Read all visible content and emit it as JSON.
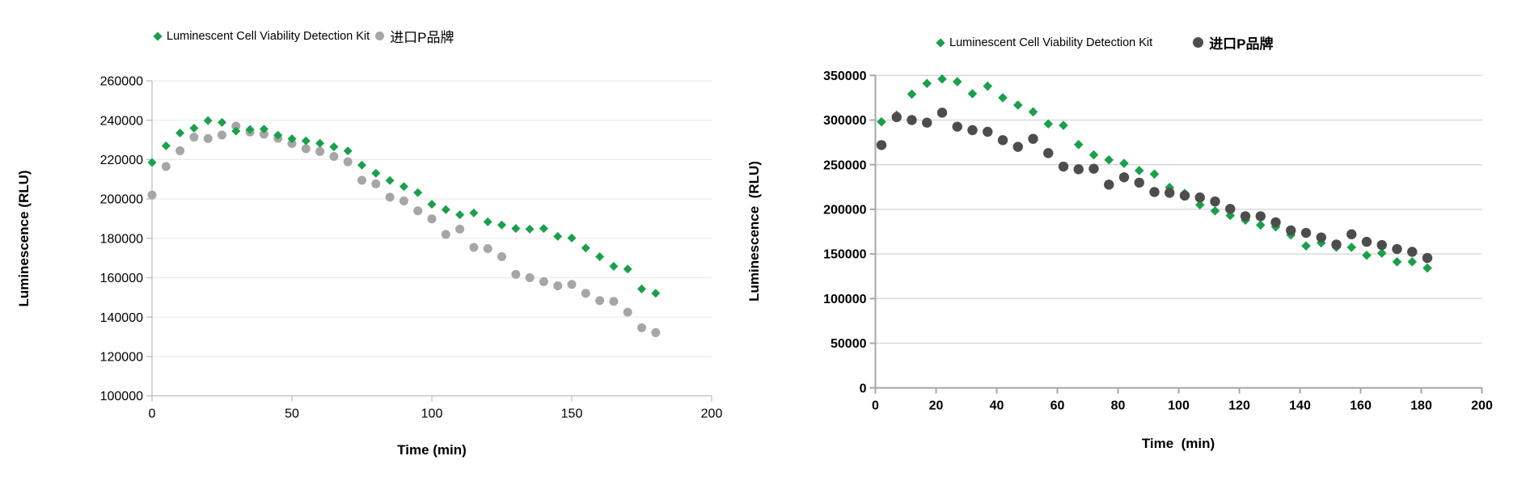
{
  "chart_data": [
    {
      "type": "scatter",
      "title": "",
      "xlabel": "Time (min)",
      "ylabel": "Luminescence (RLU)",
      "xlim": [
        0,
        200
      ],
      "ylim": [
        100000,
        260000
      ],
      "x_ticks": [
        0,
        50,
        100,
        150,
        200
      ],
      "y_ticks": [
        100000,
        120000,
        140000,
        160000,
        180000,
        200000,
        220000,
        240000,
        260000
      ],
      "grid": "horizontal",
      "legend_position": "top",
      "x": [
        0,
        5,
        10,
        15,
        20,
        25,
        30,
        35,
        40,
        45,
        50,
        55,
        60,
        65,
        70,
        75,
        80,
        85,
        90,
        95,
        100,
        105,
        110,
        115,
        120,
        125,
        130,
        135,
        140,
        145,
        150,
        155,
        160,
        165,
        170,
        175,
        180
      ],
      "series": [
        {
          "name": "Luminescent Cell Viability Detection Kit",
          "marker": "diamond",
          "color": "#1AA04A",
          "values": [
            218500,
            227000,
            233500,
            236000,
            239800,
            238900,
            234500,
            235300,
            235500,
            232400,
            230600,
            229500,
            228300,
            226500,
            224400,
            217200,
            213100,
            209400,
            206300,
            203200,
            197300,
            194600,
            192000,
            192900,
            188400,
            186800,
            185000,
            184700,
            185000,
            181000,
            180200,
            175100,
            170700,
            165800,
            164400,
            154300,
            152100
          ]
        },
        {
          "name": "进口P品牌",
          "marker": "circle",
          "color": "#A6A6A6",
          "values": [
            202000,
            216500,
            224500,
            231400,
            230700,
            232500,
            237000,
            234000,
            232900,
            230800,
            228200,
            225500,
            224100,
            221600,
            218900,
            209500,
            207700,
            200900,
            199000,
            194000,
            189900,
            182000,
            184700,
            175400,
            174800,
            170700,
            161700,
            160000,
            158000,
            155900,
            156600,
            152100,
            148400,
            148000,
            142500,
            134600,
            132100
          ]
        }
      ]
    },
    {
      "type": "scatter",
      "title": "",
      "xlabel": "Time  (min)",
      "ylabel": "Luminescence  (RLU)",
      "xlim": [
        0,
        200
      ],
      "ylim": [
        0,
        350000
      ],
      "x_ticks": [
        0,
        20,
        40,
        60,
        80,
        100,
        120,
        140,
        160,
        180,
        200
      ],
      "y_ticks": [
        0,
        50000,
        100000,
        150000,
        200000,
        250000,
        300000,
        350000
      ],
      "grid": "horizontal",
      "legend_position": "top",
      "tick_labels_bold": true,
      "x": [
        2,
        7,
        12,
        17,
        22,
        27,
        32,
        37,
        42,
        47,
        52,
        57,
        62,
        67,
        72,
        77,
        82,
        87,
        92,
        97,
        102,
        107,
        112,
        117,
        122,
        127,
        132,
        137,
        142,
        147,
        152,
        157,
        162,
        167,
        172,
        177,
        182
      ],
      "series": [
        {
          "name": "Luminescent Cell Viability Detection Kit",
          "marker": "diamond",
          "color": "#1AA04A",
          "values": [
            298000,
            305500,
            329000,
            341000,
            346000,
            343000,
            329500,
            338000,
            325000,
            316800,
            309200,
            295700,
            294100,
            272500,
            261000,
            255400,
            251500,
            243400,
            239500,
            224500,
            217900,
            205000,
            198300,
            193000,
            187800,
            182400,
            180300,
            171300,
            159000,
            162400,
            157500,
            157500,
            148500,
            150900,
            141200,
            141200,
            134200
          ]
        },
        {
          "name": "进口P品牌",
          "marker": "circle",
          "color": "#4D4D4D",
          "values": [
            272000,
            303300,
            300000,
            297100,
            308300,
            292600,
            288700,
            286900,
            277500,
            270000,
            279000,
            263000,
            247900,
            244900,
            245500,
            227700,
            235900,
            229900,
            219400,
            218500,
            215400,
            213300,
            208800,
            200500,
            192300,
            192300,
            185500,
            176400,
            173600,
            168500,
            160600,
            172100,
            163600,
            160000,
            155500,
            152400,
            145500
          ]
        }
      ]
    }
  ]
}
